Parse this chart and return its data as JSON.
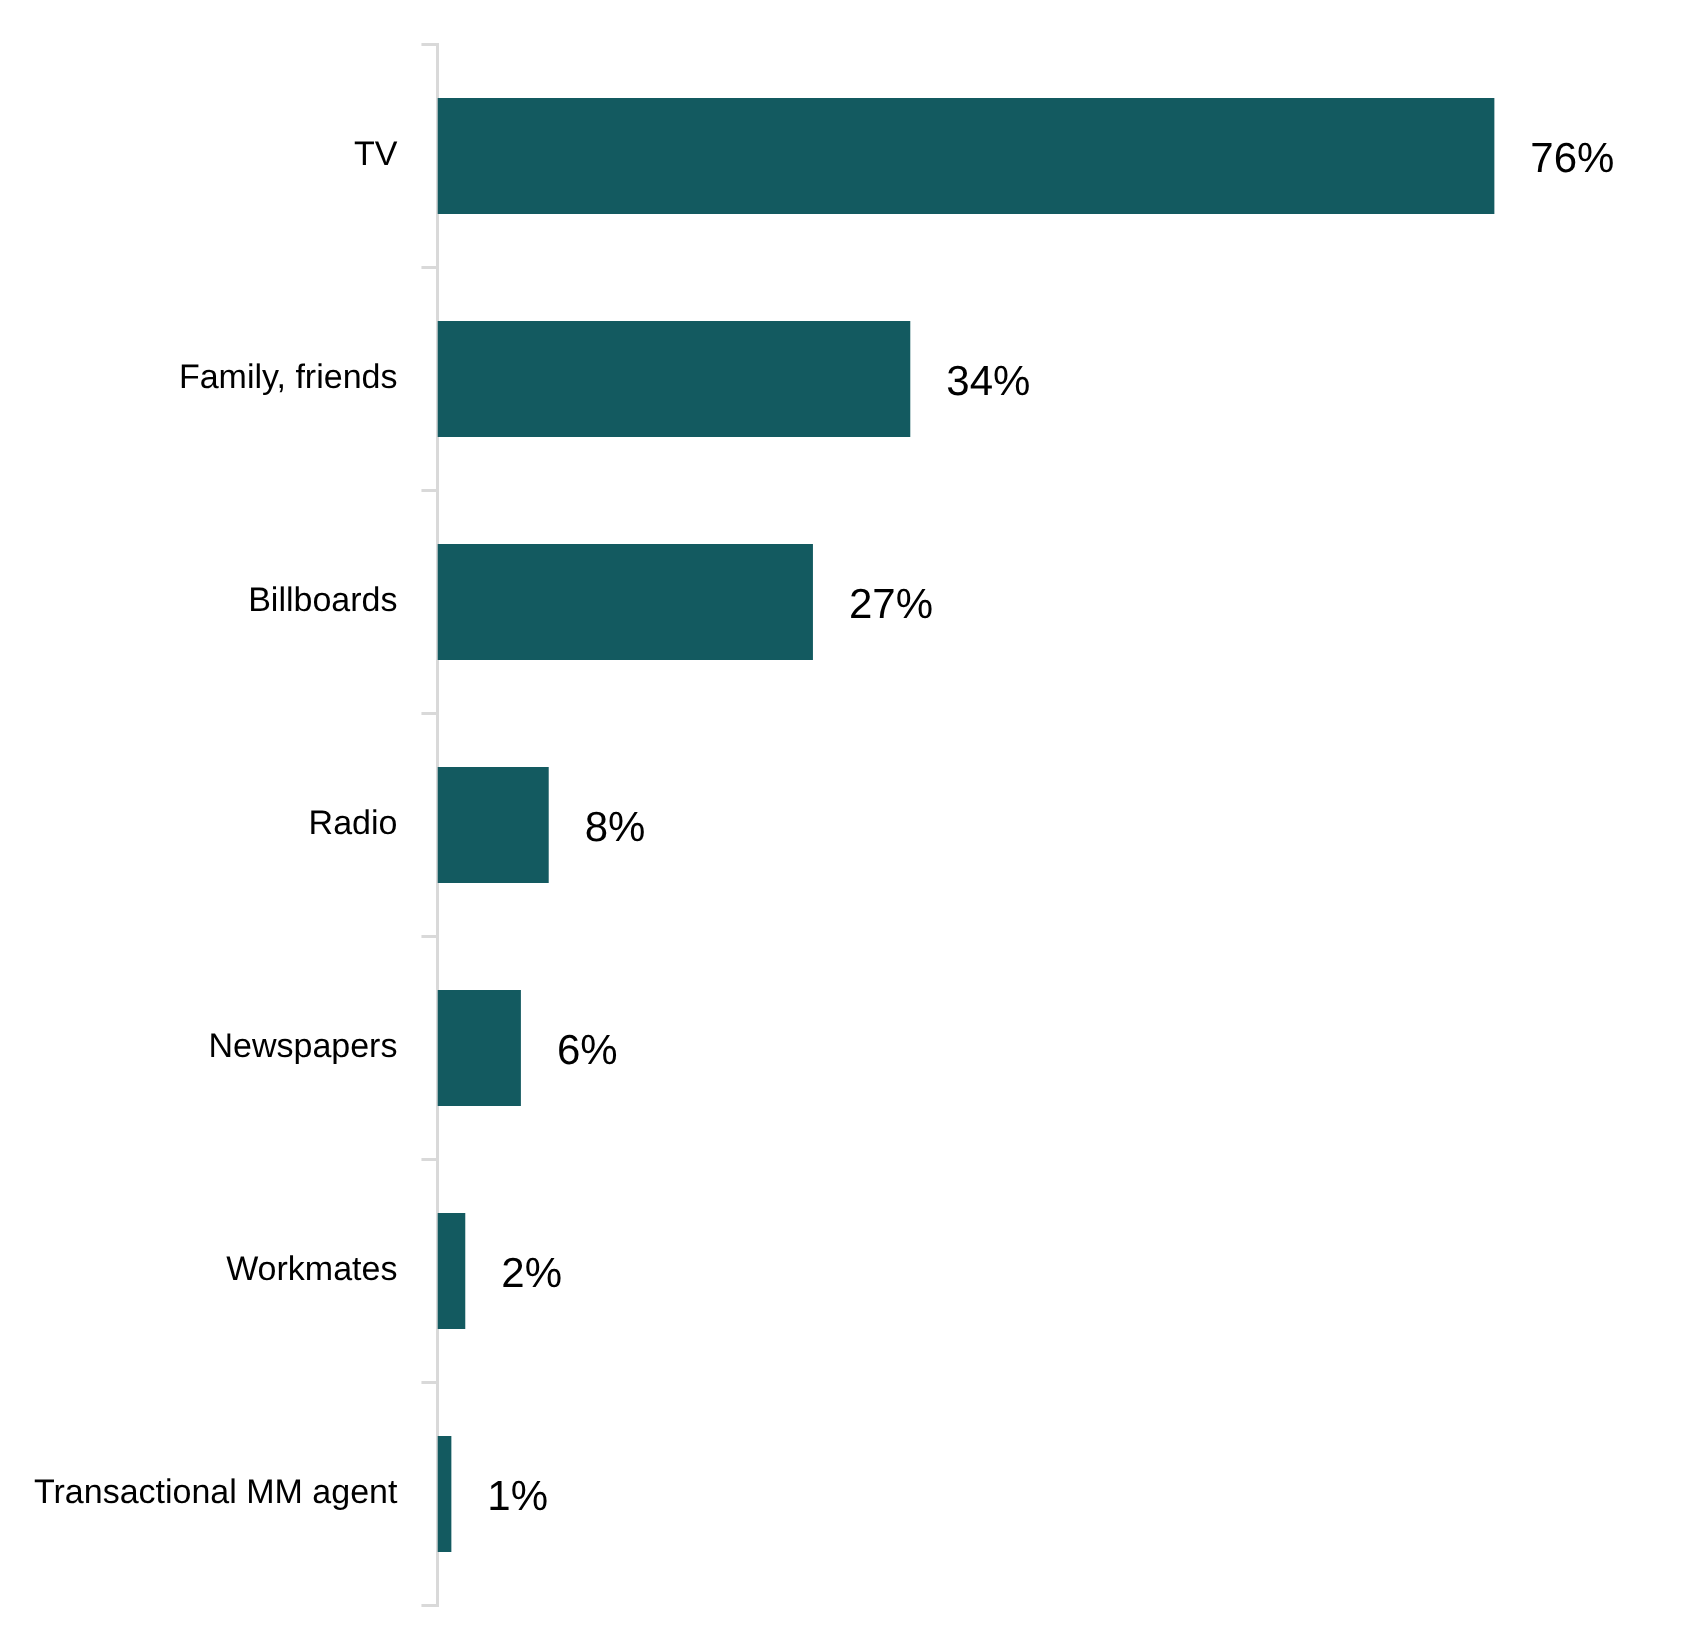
{
  "chart_data": {
    "type": "bar",
    "orientation": "horizontal",
    "categories": [
      "TV",
      "Family, friends",
      "Billboards",
      "Radio",
      "Newspapers",
      "Workmates",
      "Transactional MM agent"
    ],
    "values": [
      76,
      34,
      27,
      8,
      6,
      2,
      1
    ],
    "value_labels": [
      "76%",
      "34%",
      "27%",
      "8%",
      "6%",
      "2%",
      "1%"
    ],
    "color": "#135a60",
    "legend": false,
    "tick_labels": "y"
  }
}
